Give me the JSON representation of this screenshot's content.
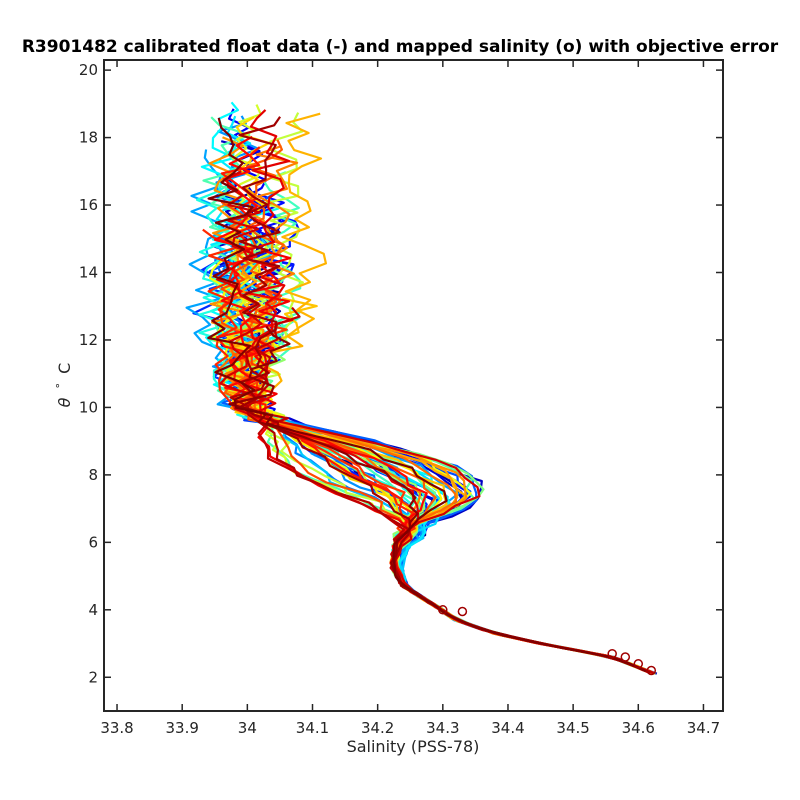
{
  "chart_data": {
    "type": "line",
    "title": "R3901482 calibrated float data (-) and mapped salinity (o) with objective error",
    "xlabel": "Salinity (PSS-78)",
    "ylabel_symbol": "θ",
    "ylabel_degree": "°",
    "ylabel_unit": "C",
    "xlim": [
      33.78,
      34.73
    ],
    "ylim": [
      1.0,
      20.3
    ],
    "xticks": [
      33.8,
      33.9,
      34.0,
      34.1,
      34.2,
      34.3,
      34.4,
      34.5,
      34.6,
      34.7
    ],
    "xtick_labels": [
      "33.8",
      "33.9",
      "34",
      "34.1",
      "34.2",
      "34.3",
      "34.4",
      "34.5",
      "34.6",
      "34.7"
    ],
    "yticks": [
      2,
      4,
      6,
      8,
      10,
      12,
      14,
      16,
      18,
      20
    ],
    "ytick_labels": [
      "2",
      "4",
      "6",
      "8",
      "10",
      "12",
      "14",
      "16",
      "18",
      "20"
    ],
    "grid": false,
    "colormap": "jet",
    "colormap_stops": [
      "#00008f",
      "#0000ff",
      "#00ffff",
      "#ffff00",
      "#ff0000",
      "#800000"
    ],
    "num_profiles": 60,
    "profile_base": {
      "s": [
        34.625,
        34.56,
        34.45,
        34.38,
        34.32,
        34.29,
        34.24,
        34.225,
        34.23,
        34.25,
        34.23,
        34.16,
        34.08,
        34.0,
        33.98,
        33.98
      ],
      "t": [
        2.1,
        2.6,
        3.0,
        3.3,
        3.7,
        4.1,
        4.7,
        5.3,
        5.9,
        6.5,
        7.2,
        8.0,
        9.0,
        10.0,
        11.0,
        12.0
      ]
    },
    "mapped_salinity_points": [
      {
        "s": 34.62,
        "t": 2.2
      },
      {
        "s": 34.6,
        "t": 2.4
      },
      {
        "s": 34.58,
        "t": 2.6
      },
      {
        "s": 34.56,
        "t": 2.7
      },
      {
        "s": 34.33,
        "t": 3.95
      },
      {
        "s": 34.3,
        "t": 4.0
      }
    ]
  }
}
